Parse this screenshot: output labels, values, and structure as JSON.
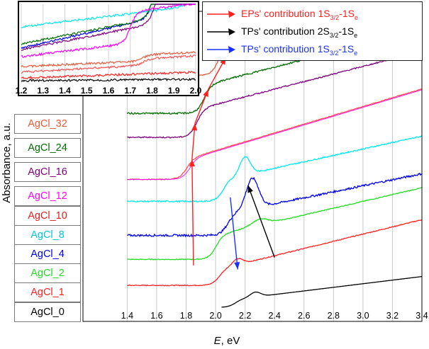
{
  "chart_data": {
    "type": "line",
    "xlabel_italic": "E",
    "xlabel_unit": ", eV",
    "ylabel": "Absorbance, a.u.",
    "xlim": [
      1.1,
      3.4
    ],
    "xticks": [
      "1.4",
      "1.6",
      "1.8",
      "2.0",
      "2.2",
      "2.4",
      "2.6",
      "2.8",
      "3.0",
      "3.2",
      "3.4"
    ],
    "series": [
      {
        "name": "AgCl_0",
        "color": "#000000",
        "label_color": "#000000",
        "base": 0.0,
        "step_at": 2.13,
        "step": 0.2,
        "slope": 0.45,
        "peak_at": 2.27,
        "peak": 0.12,
        "peak_w": 0.05,
        "noise": 0.0
      },
      {
        "name": "AgCl_1",
        "color": "#ff2020",
        "label_color": "#ff2020",
        "base": 0.55,
        "step_at": 2.02,
        "step": 0.4,
        "slope": 0.9,
        "peak_at": 2.15,
        "peak": 0.15,
        "peak_w": 0.05,
        "noise": 0.02
      },
      {
        "name": "AgCl_2",
        "color": "#22dd22",
        "label_color": "#22dd22",
        "base": 1.2,
        "step_at": 2.0,
        "step": 0.6,
        "slope": 0.85,
        "peak_at": 2.3,
        "peak": 0.15,
        "peak_w": 0.08,
        "noise": 0.02
      },
      {
        "name": "AgCl_4",
        "color": "#0000ee",
        "label_color": "#0000ee",
        "base": 1.8,
        "step_at": 2.08,
        "step": 0.55,
        "slope": 0.75,
        "peak_at": 2.25,
        "peak": 0.75,
        "peak_w": 0.06,
        "noise": 0.05
      },
      {
        "name": "AgCl_8",
        "color": "#00e8f0",
        "label_color": "#00c8d8",
        "base": 2.65,
        "step_at": 2.05,
        "step": 0.55,
        "slope": 0.8,
        "peak_at": 2.2,
        "peak": 0.45,
        "peak_w": 0.05,
        "noise": 0.03
      },
      {
        "name": "AgCl_10",
        "color": "#ff5050",
        "label_color": "#e02020",
        "base": 3.2,
        "step_at": 1.8,
        "step": 0.5,
        "slope": 1.1,
        "peak_at": 1.85,
        "peak": 0.0,
        "peak_w": 0.05,
        "noise": 0.02
      },
      {
        "name": "AgCl_12",
        "color": "#ff00ff",
        "label_color": "#ff00ff",
        "base": 3.2,
        "step_at": 1.82,
        "step": 0.5,
        "slope": 1.1,
        "peak_at": 1.85,
        "peak": 0.0,
        "peak_w": 0.05,
        "noise": 0.0
      },
      {
        "name": "AgCl_16",
        "color": "#800080",
        "label_color": "#800080",
        "base": 4.25,
        "step_at": 1.87,
        "step": 0.7,
        "slope": 0.95,
        "peak_at": 1.9,
        "peak": 0.0,
        "peak_w": 0.05,
        "noise": 0.03
      },
      {
        "name": "AgCl_24",
        "color": "#006e00",
        "label_color": "#006e00",
        "base": 4.85,
        "step_at": 1.92,
        "step": 0.7,
        "slope": 0.95,
        "peak_at": 1.95,
        "peak": 0.0,
        "peak_w": 0.05,
        "noise": 0.04
      },
      {
        "name": "AgCl_32",
        "color": "#e8593a",
        "label_color": "#e8593a",
        "base": 5.8,
        "step_at": 2.02,
        "step": 0.65,
        "slope": 0.8,
        "peak_at": 2.05,
        "peak": 0.1,
        "peak_w": 0.05,
        "noise": 0.02
      }
    ],
    "inset": {
      "xlim": [
        1.2,
        2.0
      ],
      "xticks": [
        "1.2",
        "1.3",
        "1.4",
        "1.5",
        "1.6",
        "1.7",
        "1.8",
        "1.9",
        "2.0"
      ]
    },
    "annotations": [
      {
        "color": "#ff2020",
        "text": "EPs' contribution 1S",
        "sub": "3/2",
        "tail": "-1S",
        "tail_sub": "e"
      },
      {
        "color": "#000000",
        "text": "TPs' contribution 2S",
        "sub": "3/2",
        "tail": "-1S",
        "tail_sub": "e"
      },
      {
        "color": "#1a30ff",
        "text": "TPs' contribution 1S",
        "sub": "3/2",
        "tail": "-1S",
        "tail_sub": "e"
      }
    ],
    "arrows": {
      "ep": {
        "color": "#ff2020",
        "from": [
          1.85,
          1.05
        ],
        "path": [
          [
            1.84,
            3.7
          ],
          [
            1.86,
            4.6
          ],
          [
            1.95,
            5.45
          ],
          [
            2.07,
            6.25
          ]
        ]
      },
      "tp2": {
        "color": "#000000",
        "from": [
          2.4,
          1.25
        ],
        "to": [
          2.22,
          3.05
        ]
      },
      "tp1": {
        "color": "#1a30ff",
        "from": [
          2.1,
          2.75
        ],
        "to": [
          2.15,
          0.95
        ]
      }
    }
  }
}
